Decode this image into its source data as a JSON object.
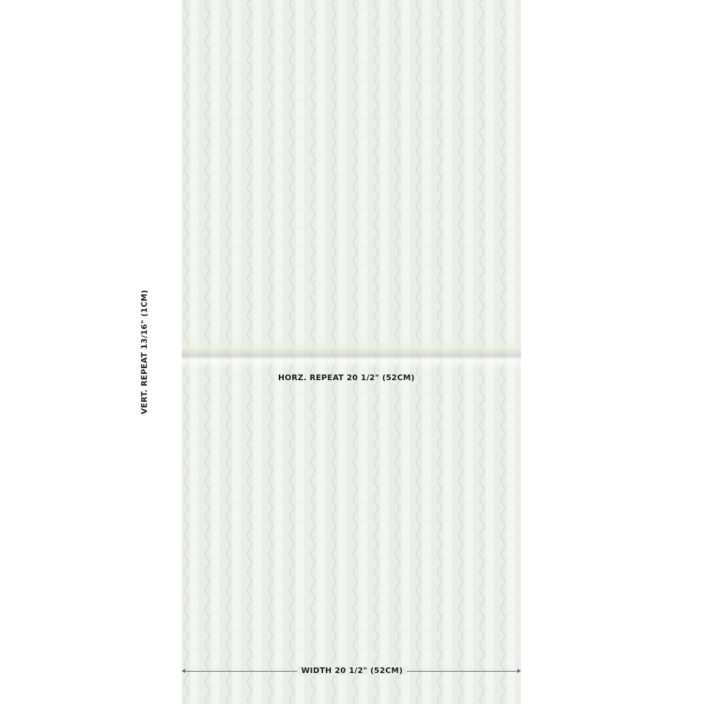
{
  "colors": {
    "background": "#ebeee8",
    "pattern_line": "#a8a49c",
    "pattern_highlight": "#ffffff",
    "text": "#1c1c1c"
  },
  "labels": {
    "vertical_repeat": "VERT. REPEAT 13/16\" (1CM)",
    "horizontal_repeat": "HORZ. REPEAT 20 1/2\" (52CM)",
    "width": "WIDTH 20 1/2\" (52CM)"
  }
}
